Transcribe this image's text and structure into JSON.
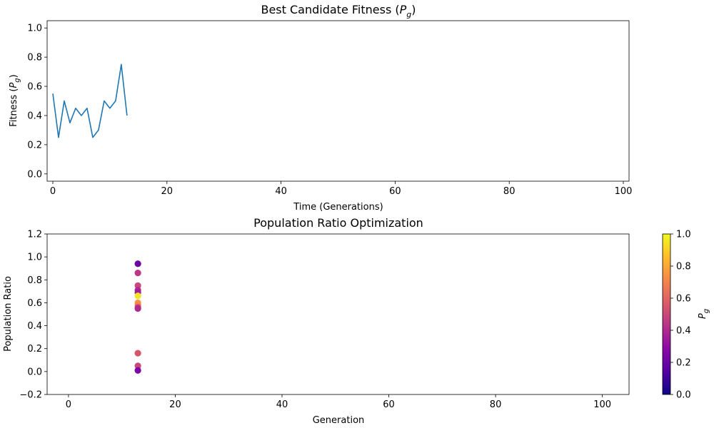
{
  "chart_data": [
    {
      "type": "line",
      "title": "Best Candidate Fitness (",
      "title_symbol": "P",
      "title_subscript": "g",
      "title_suffix": ")",
      "xlabel": "Time (Generations)",
      "ylabel": "Fitness (",
      "ylabel_symbol": "P",
      "ylabel_subscript": "g",
      "ylabel_suffix": ")",
      "xlim": [
        -1,
        101
      ],
      "ylim": [
        -0.05,
        1.05
      ],
      "xticks": [
        0,
        20,
        40,
        60,
        80,
        100
      ],
      "xtick_labels": [
        "0",
        "20",
        "40",
        "60",
        "80",
        "100"
      ],
      "yticks": [
        0.0,
        0.2,
        0.4,
        0.6,
        0.8,
        1.0
      ],
      "ytick_labels": [
        "0.0",
        "0.2",
        "0.4",
        "0.6",
        "0.8",
        "1.0"
      ],
      "grid": false,
      "series": [
        {
          "color": "#1f77b4",
          "x": [
            0,
            1,
            2,
            3,
            4,
            5,
            6,
            7,
            8,
            9,
            10,
            11,
            12,
            13
          ],
          "y": [
            0.55,
            0.25,
            0.5,
            0.35,
            0.45,
            0.4,
            0.45,
            0.25,
            0.3,
            0.5,
            0.45,
            0.5,
            0.75,
            0.4
          ]
        }
      ]
    },
    {
      "type": "scatter",
      "title": "Population Ratio Optimization",
      "xlabel": "Generation",
      "ylabel": "Population Ratio",
      "xlim": [
        -4,
        105
      ],
      "ylim": [
        -0.2,
        1.2
      ],
      "xticks": [
        0,
        20,
        40,
        60,
        80,
        100
      ],
      "xtick_labels": [
        "0",
        "20",
        "40",
        "60",
        "80",
        "100"
      ],
      "yticks": [
        -0.2,
        0.0,
        0.2,
        0.4,
        0.6,
        0.8,
        1.0,
        1.2
      ],
      "ytick_labels": [
        "−0.2",
        "0.0",
        "0.2",
        "0.4",
        "0.6",
        "0.8",
        "1.0",
        "1.2"
      ],
      "grid": false,
      "colormap": "plasma",
      "colorbar": {
        "label_symbol": "P",
        "label_subscript": "g",
        "range": [
          0,
          1
        ],
        "ticks": [
          0.0,
          0.2,
          0.4,
          0.6,
          0.8,
          1.0
        ],
        "tick_labels": [
          "0.0",
          "0.2",
          "0.4",
          "0.6",
          "0.8",
          "1.0"
        ],
        "stops": [
          "#0d0887",
          "#5302a3",
          "#8b0aa5",
          "#b83289",
          "#db5c68",
          "#f48849",
          "#febd2a",
          "#f0f921"
        ]
      },
      "points": [
        {
          "x": 13,
          "y": 0.94,
          "c": 0.2
        },
        {
          "x": 13,
          "y": 0.86,
          "c": 0.45
        },
        {
          "x": 13,
          "y": 0.75,
          "c": 0.5
        },
        {
          "x": 13,
          "y": 0.71,
          "c": 0.4
        },
        {
          "x": 13,
          "y": 0.69,
          "c": 0.35
        },
        {
          "x": 13,
          "y": 0.66,
          "c": 0.95
        },
        {
          "x": 13,
          "y": 0.6,
          "c": 0.75
        },
        {
          "x": 13,
          "y": 0.58,
          "c": 0.7
        },
        {
          "x": 13,
          "y": 0.56,
          "c": 0.5
        },
        {
          "x": 13,
          "y": 0.55,
          "c": 0.4
        },
        {
          "x": 13,
          "y": 0.16,
          "c": 0.55
        },
        {
          "x": 13,
          "y": 0.05,
          "c": 0.5
        },
        {
          "x": 13,
          "y": 0.01,
          "c": 0.25
        }
      ]
    }
  ]
}
